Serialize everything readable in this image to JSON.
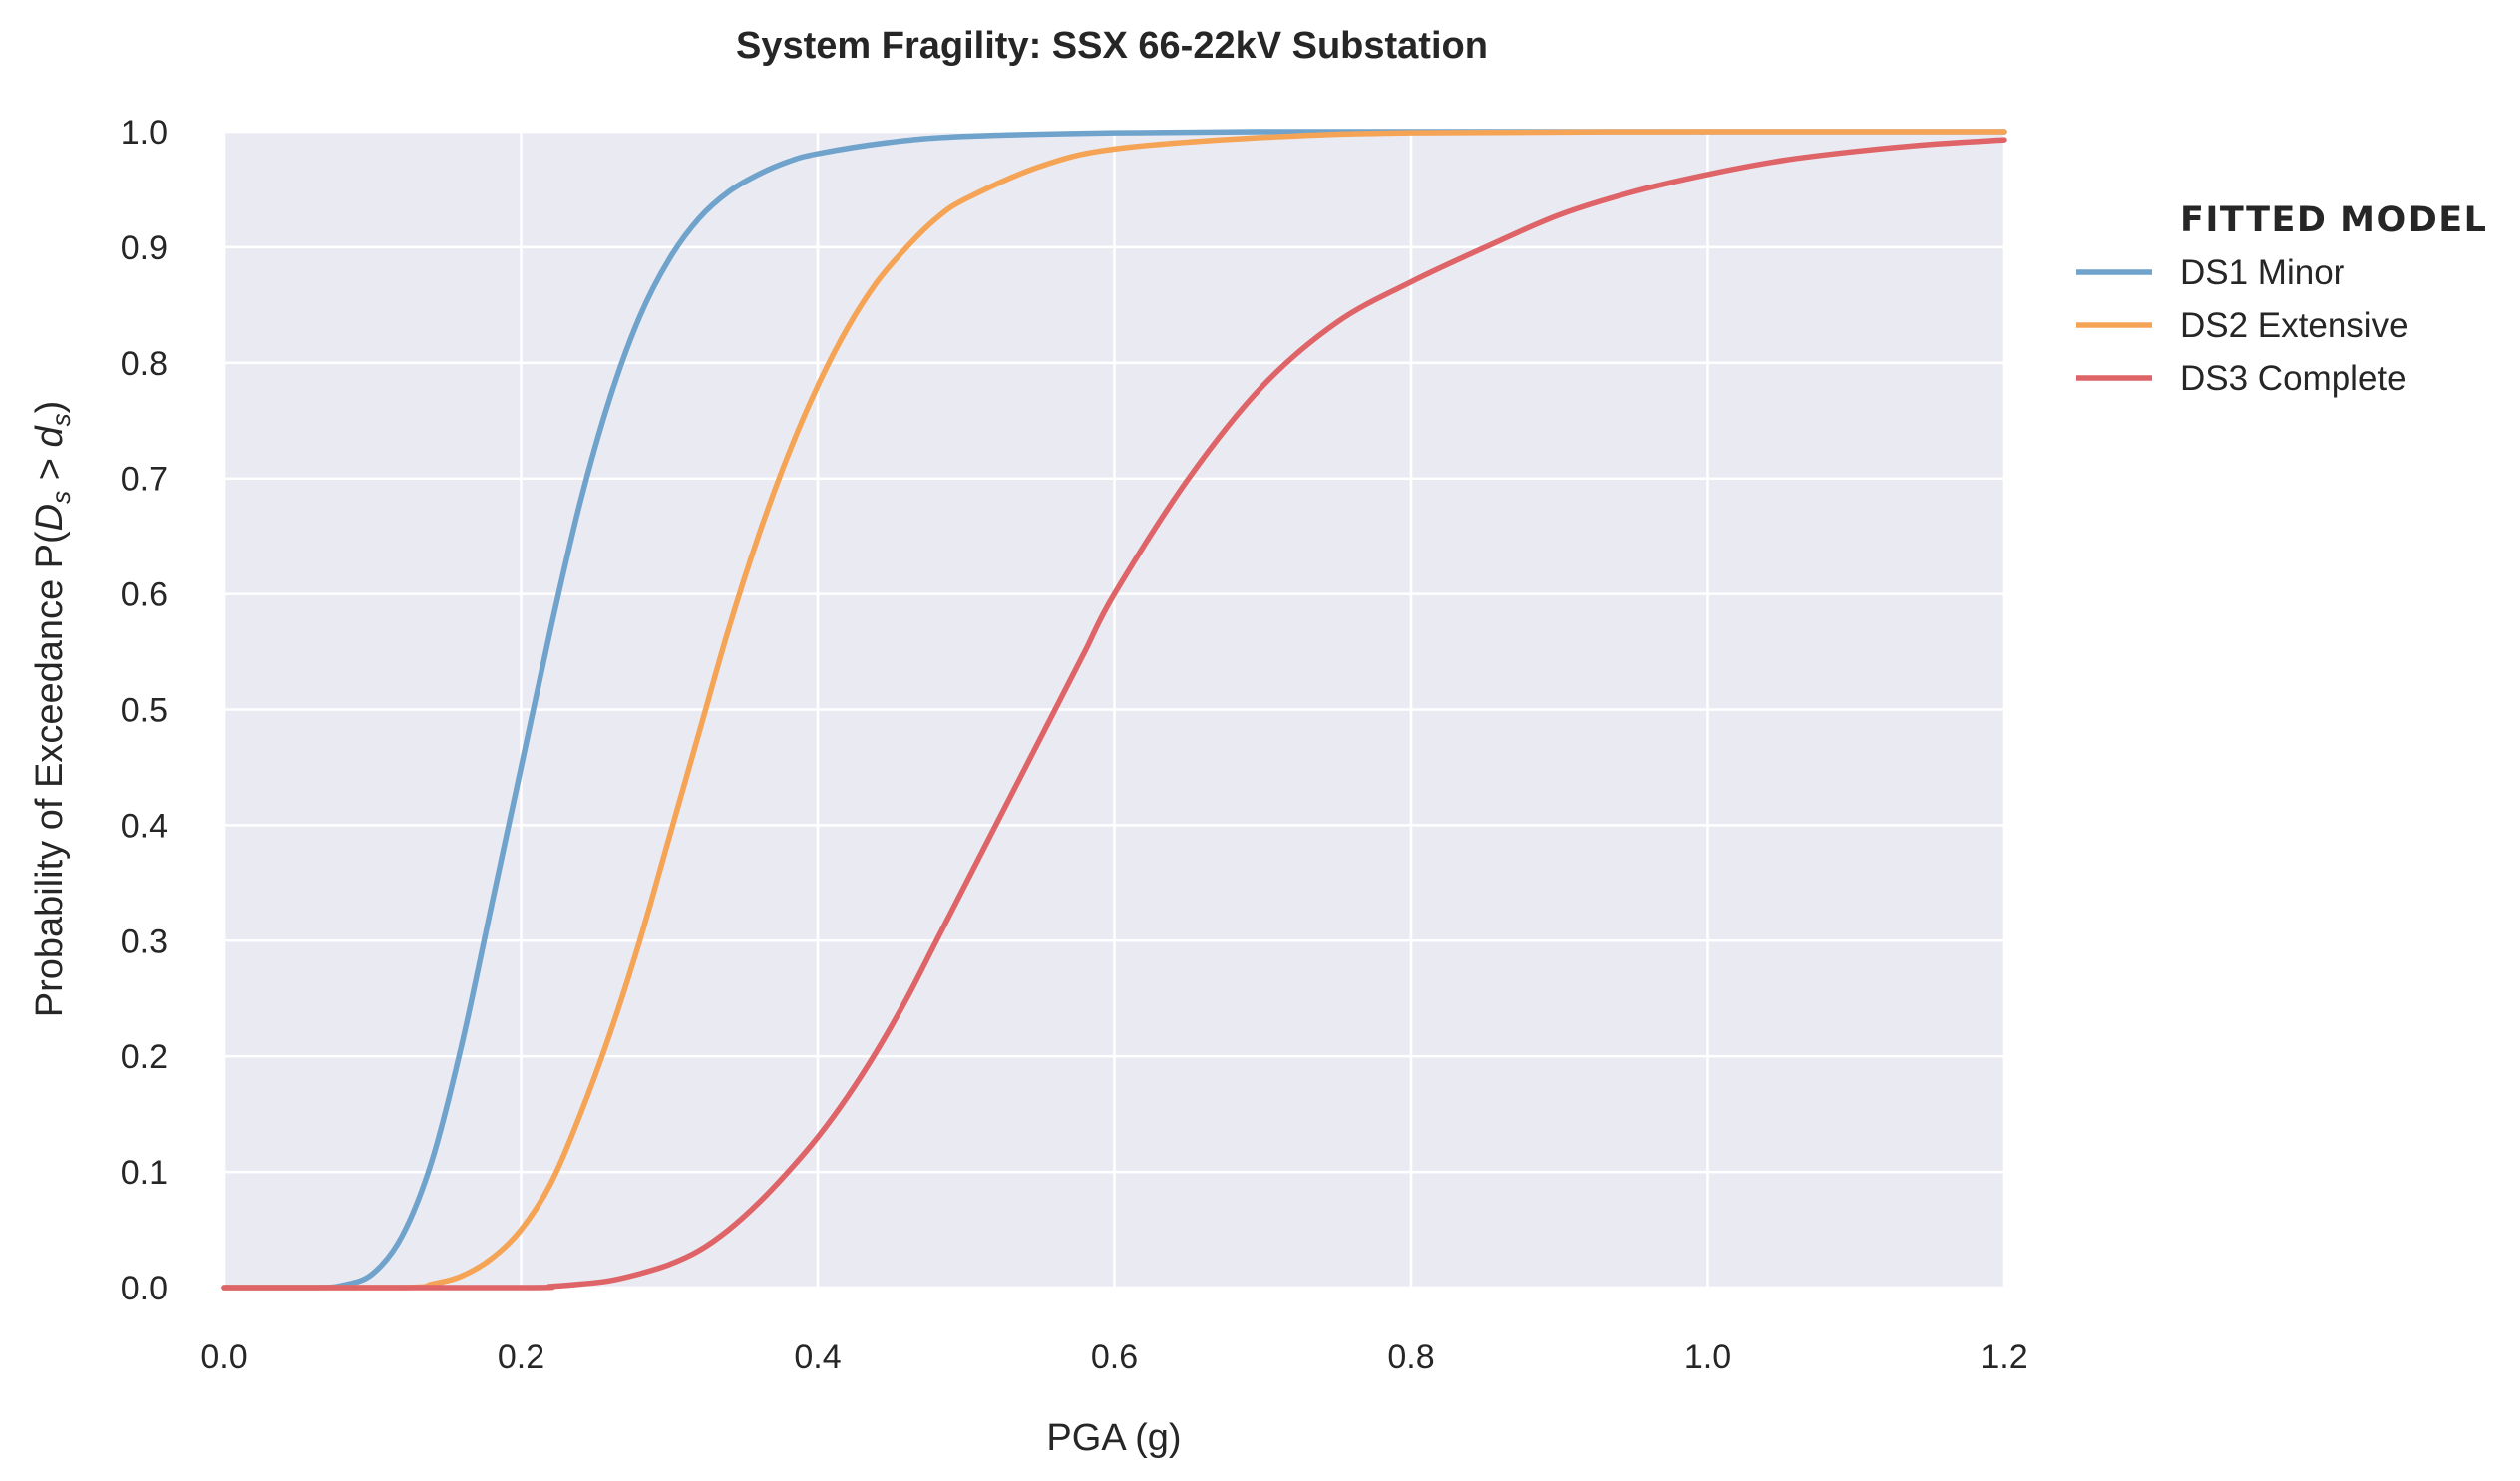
{
  "chart_data": {
    "type": "line",
    "title": "System Fragility: SSX 66-22kV Substation",
    "xlabel": "PGA (g)",
    "ylabel_prefix": "Probability of Exceedance  P(",
    "ylabel_d": "D",
    "ylabel_d_sub": "s",
    "ylabel_gt": " > ",
    "ylabel_ds": "d",
    "ylabel_ds_sub": "s",
    "ylabel_suffix": ")",
    "xlim": [
      0.0,
      1.2
    ],
    "ylim": [
      0.0,
      1.0
    ],
    "x_ticks": [
      "0.0",
      "0.2",
      "0.4",
      "0.6",
      "0.8",
      "1.0",
      "1.2"
    ],
    "y_ticks": [
      "0.0",
      "0.1",
      "0.2",
      "0.3",
      "0.4",
      "0.5",
      "0.6",
      "0.7",
      "0.8",
      "0.9",
      "1.0"
    ],
    "grid": true,
    "legend": {
      "title": "FITTED MODEL",
      "placement": "outside-right"
    },
    "series": [
      {
        "name": "DS1 Minor",
        "color": "#6fa3cc",
        "x": [
          0.0,
          0.06,
          0.08,
          0.1,
          0.12,
          0.14,
          0.16,
          0.18,
          0.2,
          0.22,
          0.24,
          0.26,
          0.28,
          0.3,
          0.32,
          0.34,
          0.36,
          0.38,
          0.4,
          0.45,
          0.5,
          0.6,
          0.7,
          0.8,
          1.0,
          1.2
        ],
        "y": [
          0.0,
          0.0,
          0.002,
          0.012,
          0.045,
          0.11,
          0.21,
          0.33,
          0.45,
          0.57,
          0.68,
          0.77,
          0.84,
          0.89,
          0.925,
          0.948,
          0.963,
          0.974,
          0.981,
          0.991,
          0.996,
          0.999,
          1.0,
          1.0,
          1.0,
          1.0
        ]
      },
      {
        "name": "DS2 Extensive",
        "color": "#f5a456",
        "x": [
          0.0,
          0.12,
          0.14,
          0.16,
          0.18,
          0.2,
          0.22,
          0.24,
          0.26,
          0.28,
          0.3,
          0.32,
          0.34,
          0.36,
          0.38,
          0.4,
          0.42,
          0.44,
          0.46,
          0.48,
          0.5,
          0.55,
          0.6,
          0.7,
          0.8,
          1.0,
          1.2
        ],
        "y": [
          0.0,
          0.0,
          0.003,
          0.01,
          0.025,
          0.05,
          0.09,
          0.15,
          0.22,
          0.3,
          0.39,
          0.48,
          0.57,
          0.65,
          0.72,
          0.78,
          0.83,
          0.87,
          0.9,
          0.925,
          0.942,
          0.97,
          0.985,
          0.995,
          0.999,
          1.0,
          1.0
        ]
      },
      {
        "name": "DS3 Complete",
        "color": "#de6468",
        "x": [
          0.0,
          0.2,
          0.22,
          0.24,
          0.26,
          0.28,
          0.3,
          0.32,
          0.34,
          0.36,
          0.38,
          0.4,
          0.42,
          0.44,
          0.46,
          0.48,
          0.5,
          0.52,
          0.54,
          0.56,
          0.58,
          0.6,
          0.65,
          0.7,
          0.75,
          0.8,
          0.85,
          0.9,
          0.95,
          1.0,
          1.05,
          1.1,
          1.15,
          1.2
        ],
        "y": [
          0.0,
          0.0,
          0.001,
          0.003,
          0.006,
          0.012,
          0.02,
          0.032,
          0.05,
          0.073,
          0.1,
          0.13,
          0.165,
          0.205,
          0.25,
          0.3,
          0.35,
          0.4,
          0.45,
          0.5,
          0.55,
          0.6,
          0.7,
          0.78,
          0.835,
          0.87,
          0.9,
          0.928,
          0.948,
          0.963,
          0.975,
          0.983,
          0.989,
          0.993
        ]
      }
    ]
  }
}
